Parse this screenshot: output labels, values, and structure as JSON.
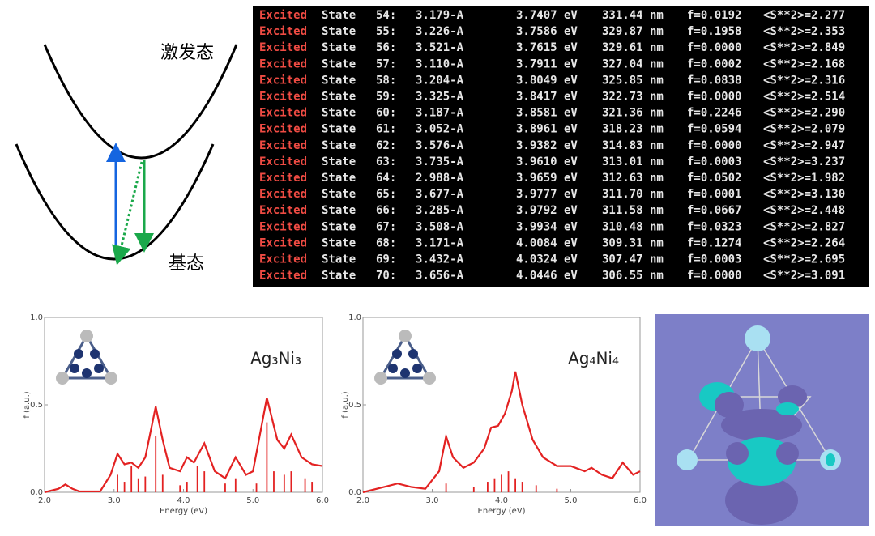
{
  "diagram": {
    "upper_label": "激发态",
    "lower_label": "基态"
  },
  "terminal": {
    "rows": [
      [
        "Excited",
        "State",
        "54:",
        "3.179-A",
        "3.7407 eV",
        "331.44 nm",
        "f=0.0192",
        "<S**2>=2.277"
      ],
      [
        "Excited",
        "State",
        "55:",
        "3.226-A",
        "3.7586 eV",
        "329.87 nm",
        "f=0.1958",
        "<S**2>=2.353"
      ],
      [
        "Excited",
        "State",
        "56:",
        "3.521-A",
        "3.7615 eV",
        "329.61 nm",
        "f=0.0000",
        "<S**2>=2.849"
      ],
      [
        "Excited",
        "State",
        "57:",
        "3.110-A",
        "3.7911 eV",
        "327.04 nm",
        "f=0.0002",
        "<S**2>=2.168"
      ],
      [
        "Excited",
        "State",
        "58:",
        "3.204-A",
        "3.8049 eV",
        "325.85 nm",
        "f=0.0838",
        "<S**2>=2.316"
      ],
      [
        "Excited",
        "State",
        "59:",
        "3.325-A",
        "3.8417 eV",
        "322.73 nm",
        "f=0.0000",
        "<S**2>=2.514"
      ],
      [
        "Excited",
        "State",
        "60:",
        "3.187-A",
        "3.8581 eV",
        "321.36 nm",
        "f=0.2246",
        "<S**2>=2.290"
      ],
      [
        "Excited",
        "State",
        "61:",
        "3.052-A",
        "3.8961 eV",
        "318.23 nm",
        "f=0.0594",
        "<S**2>=2.079"
      ],
      [
        "Excited",
        "State",
        "62:",
        "3.576-A",
        "3.9382 eV",
        "314.83 nm",
        "f=0.0000",
        "<S**2>=2.947"
      ],
      [
        "Excited",
        "State",
        "63:",
        "3.735-A",
        "3.9610 eV",
        "313.01 nm",
        "f=0.0003",
        "<S**2>=3.237"
      ],
      [
        "Excited",
        "State",
        "64:",
        "2.988-A",
        "3.9659 eV",
        "312.63 nm",
        "f=0.0502",
        "<S**2>=1.982"
      ],
      [
        "Excited",
        "State",
        "65:",
        "3.677-A",
        "3.9777 eV",
        "311.70 nm",
        "f=0.0001",
        "<S**2>=3.130"
      ],
      [
        "Excited",
        "State",
        "66:",
        "3.285-A",
        "3.9792 eV",
        "311.58 nm",
        "f=0.0667",
        "<S**2>=2.448"
      ],
      [
        "Excited",
        "State",
        "67:",
        "3.508-A",
        "3.9934 eV",
        "310.48 nm",
        "f=0.0323",
        "<S**2>=2.827"
      ],
      [
        "Excited",
        "State",
        "68:",
        "3.171-A",
        "4.0084 eV",
        "309.31 nm",
        "f=0.1274",
        "<S**2>=2.264"
      ],
      [
        "Excited",
        "State",
        "69:",
        "3.432-A",
        "4.0324 eV",
        "307.47 nm",
        "f=0.0003",
        "<S**2>=2.695"
      ],
      [
        "Excited",
        "State",
        "70:",
        "3.656-A",
        "4.0446 eV",
        "306.55 nm",
        "f=0.0000",
        "<S**2>=3.091"
      ]
    ]
  },
  "chart_data": [
    {
      "type": "line",
      "annotation": "Ag₃Ni₃",
      "x_label": "Energy (eV)",
      "y_label": "f (a.u.)",
      "color": "#e32222",
      "x": [
        2.0,
        2.2,
        2.3,
        2.4,
        2.5,
        2.8,
        2.95,
        3.05,
        3.15,
        3.25,
        3.35,
        3.45,
        3.6,
        3.7,
        3.8,
        3.95,
        4.05,
        4.15,
        4.3,
        4.45,
        4.6,
        4.75,
        4.9,
        5.0,
        5.2,
        5.35,
        5.45,
        5.55,
        5.7,
        5.85,
        6.0
      ],
      "values": [
        0.0,
        0.02,
        0.045,
        0.02,
        0.005,
        0.005,
        0.1,
        0.22,
        0.16,
        0.17,
        0.14,
        0.2,
        0.49,
        0.3,
        0.14,
        0.12,
        0.2,
        0.17,
        0.28,
        0.12,
        0.08,
        0.2,
        0.1,
        0.12,
        0.54,
        0.3,
        0.25,
        0.33,
        0.2,
        0.16,
        0.15
      ],
      "stick_x": [
        3.05,
        3.15,
        3.25,
        3.35,
        3.45,
        3.6,
        3.7,
        3.95,
        4.05,
        4.2,
        4.3,
        4.6,
        4.75,
        5.05,
        5.2,
        5.3,
        5.45,
        5.55,
        5.75,
        5.85
      ],
      "stick_values": [
        0.1,
        0.06,
        0.15,
        0.08,
        0.09,
        0.32,
        0.1,
        0.04,
        0.06,
        0.15,
        0.12,
        0.05,
        0.08,
        0.05,
        0.4,
        0.12,
        0.1,
        0.12,
        0.08,
        0.06
      ],
      "xlim": [
        2,
        6
      ],
      "xticks": [
        {
          "value": 2,
          "label": "2.0"
        },
        {
          "value": 3,
          "label": "3.0"
        },
        {
          "value": 4,
          "label": "4.0"
        },
        {
          "value": 5,
          "label": "5.0"
        },
        {
          "value": 6,
          "label": "6.0"
        }
      ],
      "ylim": [
        0,
        1
      ],
      "yticks": [
        {
          "value": 0,
          "label": "0.0"
        },
        0.5,
        {
          "value": 1,
          "label": "1.0"
        }
      ]
    },
    {
      "type": "line",
      "annotation": "Ag₄Ni₄",
      "x_label": "Energy (eV)",
      "y_label": "f (a.u.)",
      "color": "#e32222",
      "x": [
        2.0,
        2.3,
        2.5,
        2.7,
        2.9,
        3.1,
        3.2,
        3.3,
        3.45,
        3.6,
        3.75,
        3.85,
        3.95,
        4.05,
        4.15,
        4.2,
        4.3,
        4.45,
        4.6,
        4.8,
        5.0,
        5.2,
        5.3,
        5.45,
        5.6,
        5.75,
        5.9,
        6.0
      ],
      "values": [
        0.0,
        0.03,
        0.05,
        0.03,
        0.02,
        0.12,
        0.32,
        0.2,
        0.14,
        0.17,
        0.25,
        0.37,
        0.38,
        0.45,
        0.58,
        0.69,
        0.5,
        0.3,
        0.2,
        0.15,
        0.15,
        0.12,
        0.14,
        0.1,
        0.08,
        0.17,
        0.1,
        0.12
      ],
      "stick_x": [
        3.2,
        3.6,
        3.8,
        3.9,
        4.0,
        4.1,
        4.2,
        4.3,
        4.5,
        4.8
      ],
      "stick_values": [
        0.05,
        0.03,
        0.06,
        0.08,
        0.1,
        0.12,
        0.08,
        0.06,
        0.04,
        0.02
      ],
      "xlim": [
        2,
        6
      ],
      "xticks": [
        {
          "value": 2,
          "label": "2.0"
        },
        {
          "value": 3,
          "label": "3.0"
        },
        {
          "value": 4,
          "label": "4.0"
        },
        {
          "value": 5,
          "label": "5.0"
        },
        {
          "value": 6,
          "label": "6.0"
        }
      ],
      "ylim": [
        0,
        1
      ],
      "yticks": [
        {
          "value": 0,
          "label": "0.0"
        },
        0.5,
        {
          "value": 1,
          "label": "1.0"
        }
      ]
    }
  ]
}
